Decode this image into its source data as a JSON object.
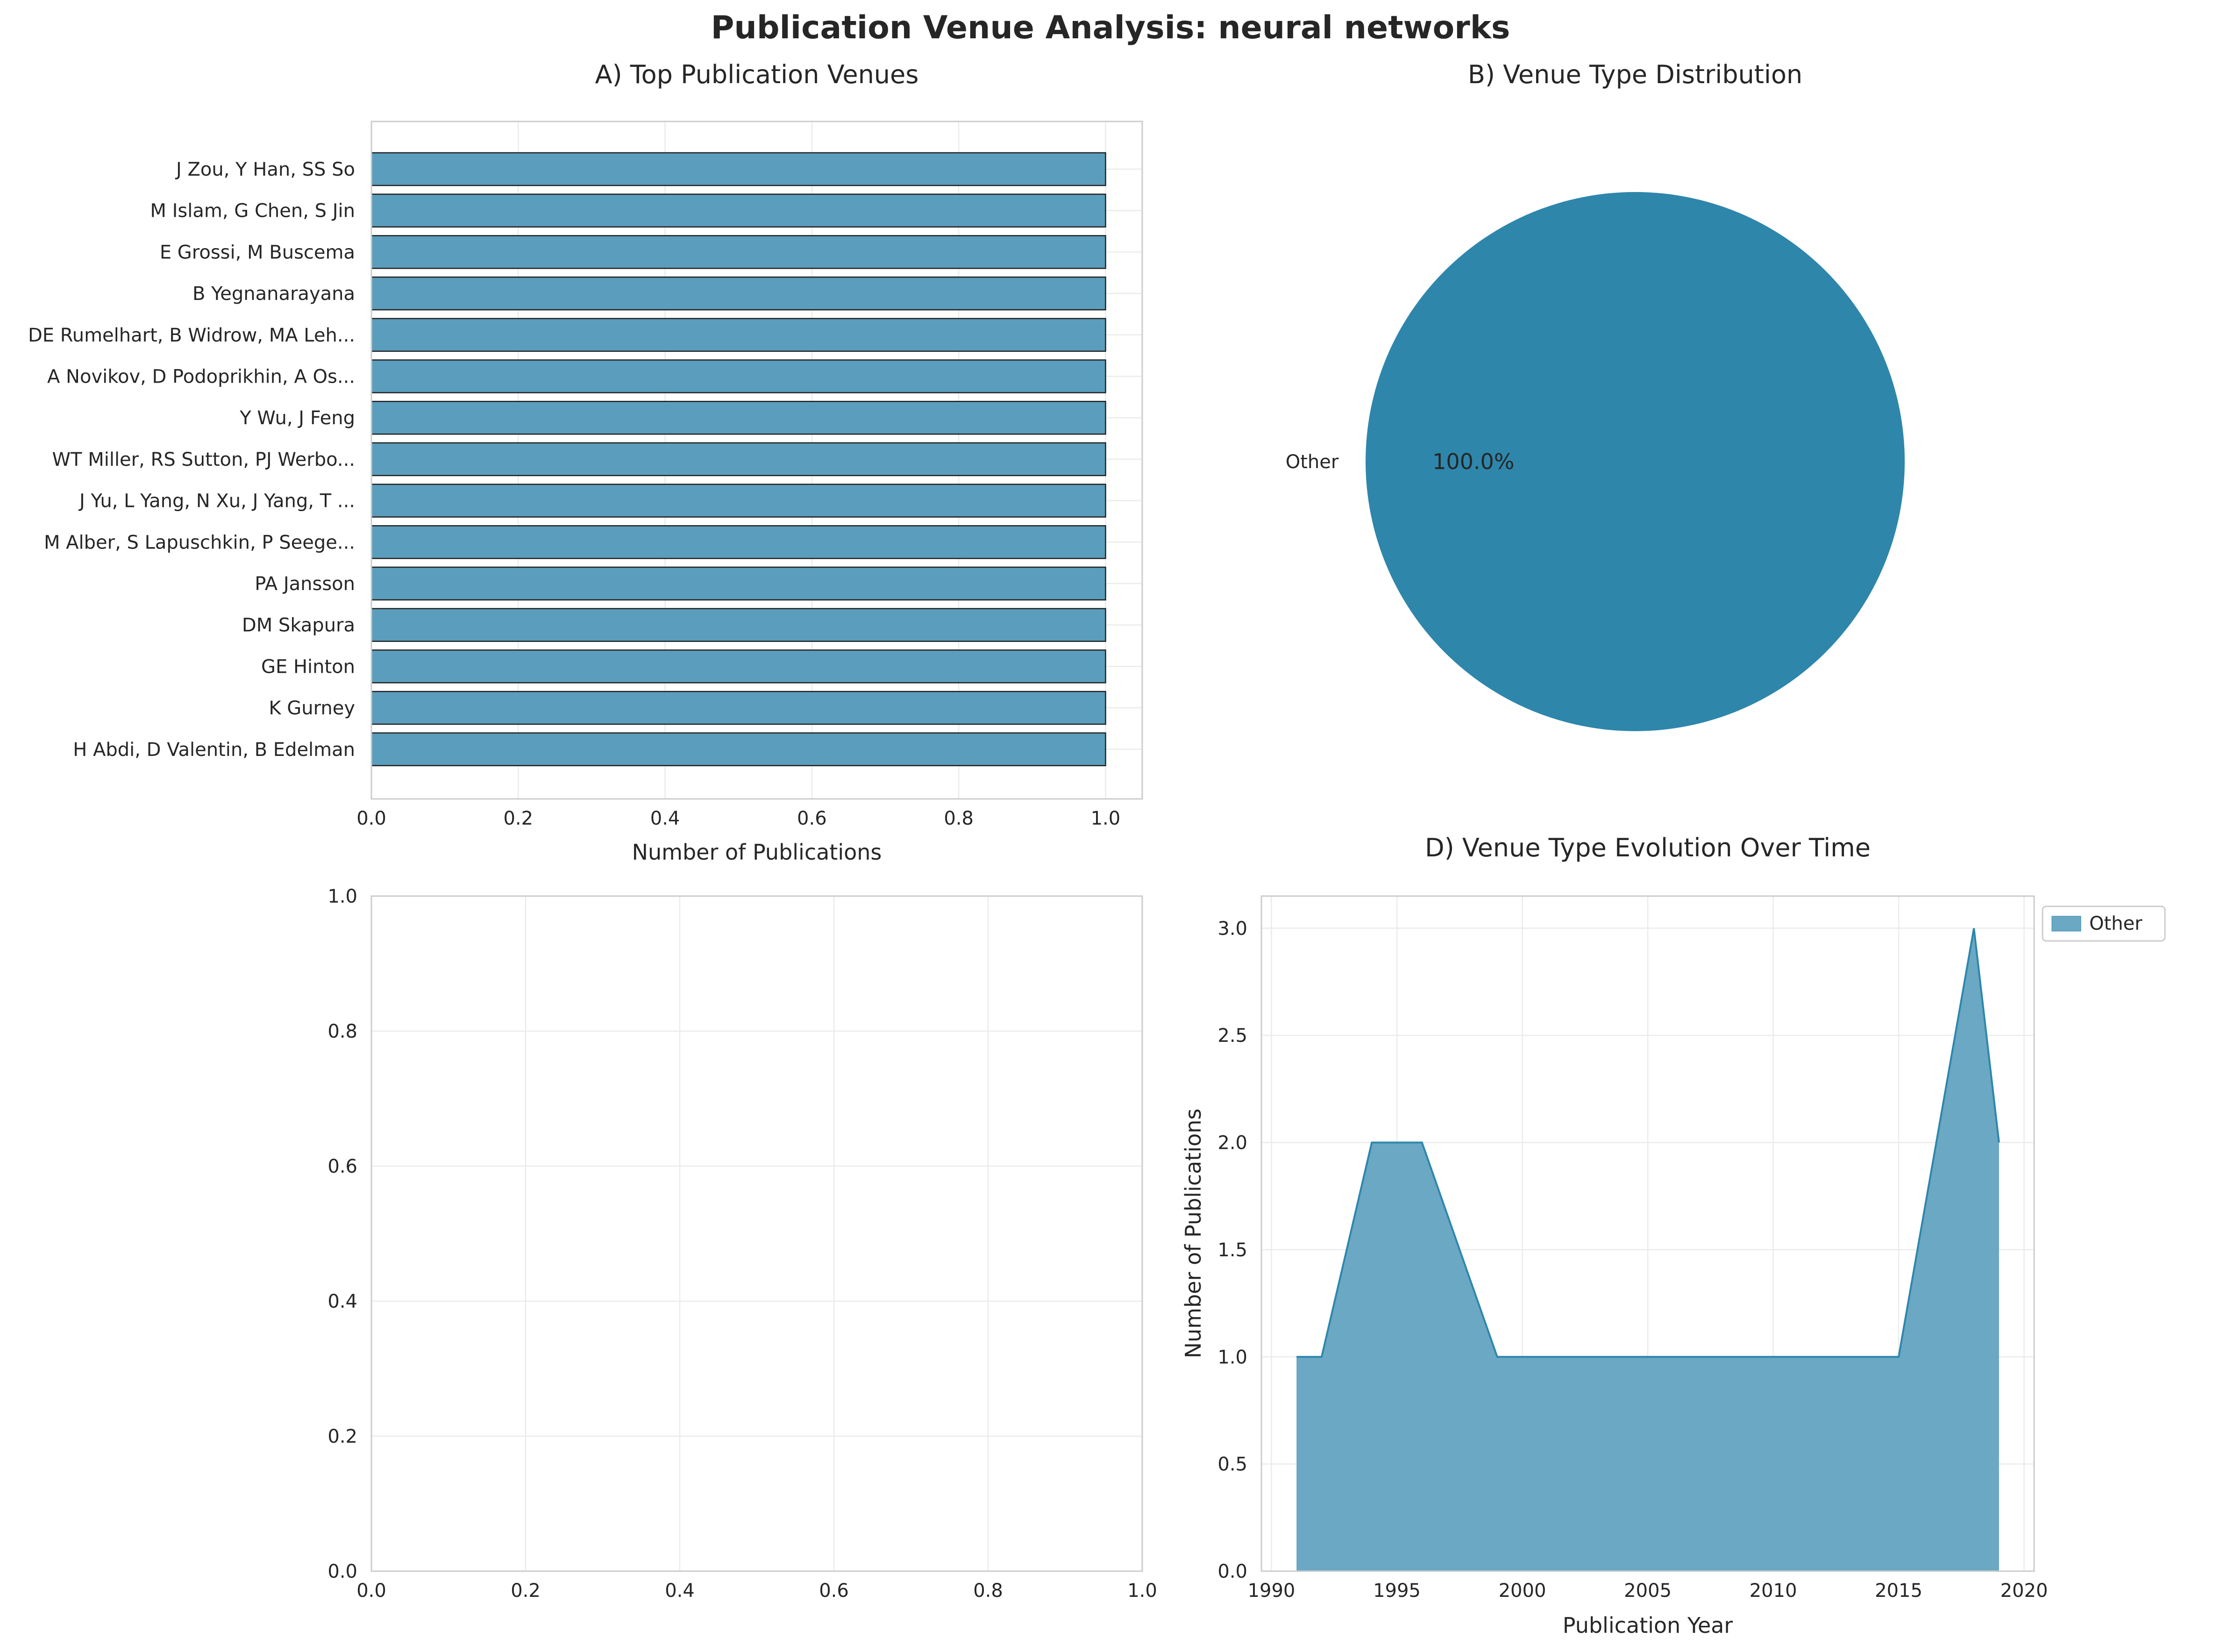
{
  "figure": {
    "title": "Publication Venue Analysis: neural networks"
  },
  "colors": {
    "bar": "#5b9dbc",
    "pie": "#2e86ab",
    "area_fill": "#6aa8c3",
    "area_line": "#2e86ab"
  },
  "chart_data": [
    {
      "id": "A",
      "type": "bar",
      "orientation": "horizontal",
      "title": "A) Top Publication Venues",
      "xlabel": "Number of Publications",
      "ylabel": "",
      "categories": [
        "J Zou, Y Han, SS So",
        "M Islam, G Chen, S Jin",
        "E Grossi, M Buscema",
        "B Yegnanarayana",
        "DE Rumelhart, B Widrow, MA Leh...",
        "A Novikov, D Podoprikhin, A Os...",
        "Y Wu, J Feng",
        "WT Miller, RS Sutton, PJ Werbo...",
        "J Yu, L Yang, N Xu, J Yang, T ...",
        "M Alber, S Lapuschkin, P Seege...",
        "PA Jansson",
        "DM Skapura",
        "GE Hinton",
        "K Gurney",
        "H Abdi, D Valentin, B Edelman"
      ],
      "values": [
        1,
        1,
        1,
        1,
        1,
        1,
        1,
        1,
        1,
        1,
        1,
        1,
        1,
        1,
        1
      ],
      "xlim": [
        0,
        1.05
      ],
      "xticks": [
        "0.0",
        "0.2",
        "0.4",
        "0.6",
        "0.8",
        "1.0"
      ],
      "grid": true
    },
    {
      "id": "B",
      "type": "pie",
      "title": "B) Venue Type Distribution",
      "labels": [
        "Other"
      ],
      "values": [
        100
      ],
      "pct_labels": [
        "100.0%"
      ]
    },
    {
      "id": "C",
      "type": "scatter",
      "title": "",
      "xlabel": "",
      "ylabel": "",
      "xlim": [
        0,
        1
      ],
      "ylim": [
        0,
        1
      ],
      "xticks": [
        "0.0",
        "0.2",
        "0.4",
        "0.6",
        "0.8",
        "1.0"
      ],
      "yticks": [
        "0.0",
        "0.2",
        "0.4",
        "0.6",
        "0.8",
        "1.0"
      ],
      "series": [],
      "grid": true
    },
    {
      "id": "D",
      "type": "area",
      "title": "D) Venue Type Evolution Over Time",
      "xlabel": "Publication Year",
      "ylabel": "Number of Publications",
      "xlim": [
        1989.6,
        2020.4
      ],
      "ylim": [
        0,
        3.15
      ],
      "xticks": [
        "1990",
        "1995",
        "2000",
        "2005",
        "2010",
        "2015",
        "2020"
      ],
      "yticks": [
        "0.0",
        "0.5",
        "1.0",
        "1.5",
        "2.0",
        "2.5",
        "3.0"
      ],
      "legend_position": "outside upper right",
      "grid": true,
      "series": [
        {
          "name": "Other",
          "x": [
            1991,
            1992,
            1994,
            1996,
            1999,
            2015,
            2018,
            2019
          ],
          "y": [
            1,
            1,
            2,
            2,
            1,
            1,
            3,
            2
          ]
        }
      ]
    }
  ]
}
